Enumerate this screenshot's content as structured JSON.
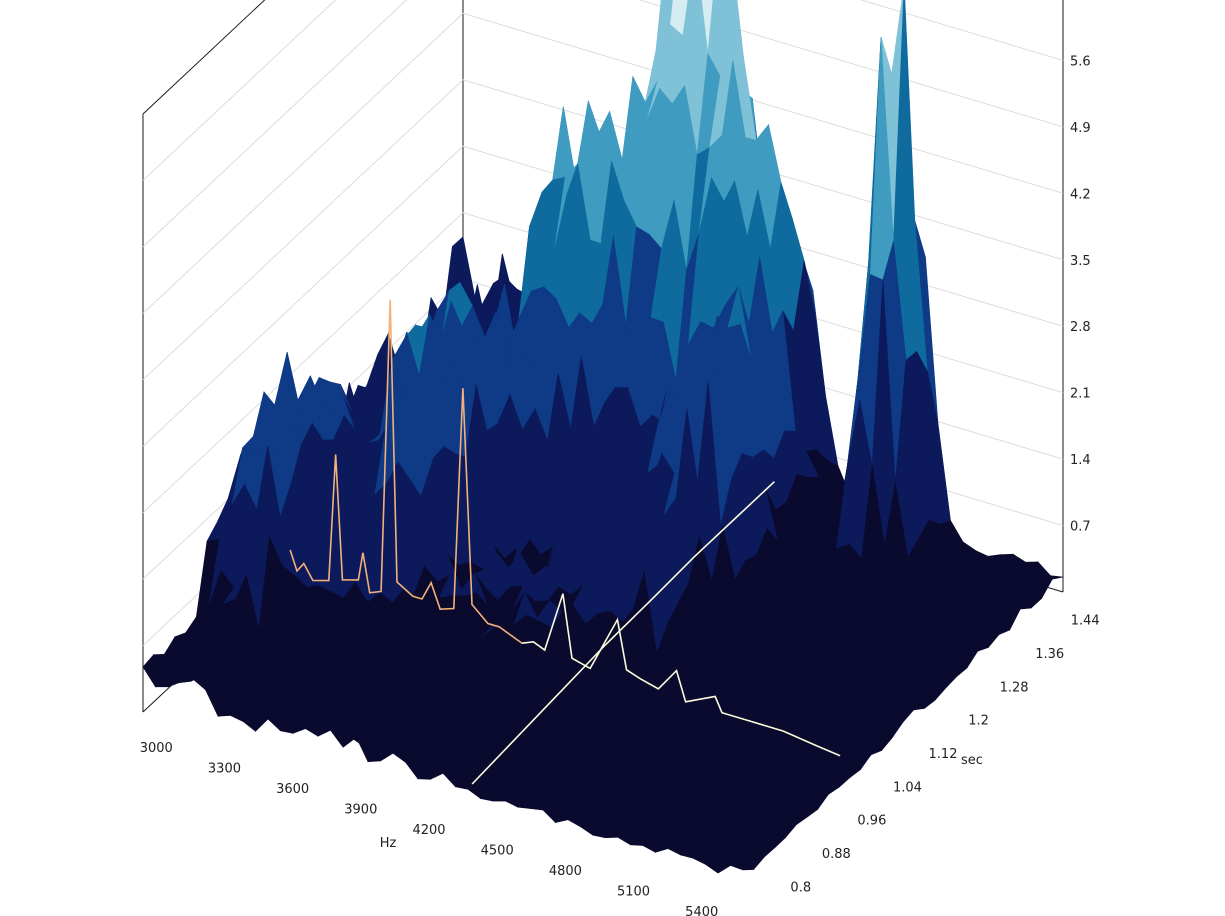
{
  "chart_data": {
    "type": "surface-3d",
    "title": "",
    "xlabel": "Hz",
    "ylabel": "sec",
    "zlabel": "",
    "x_ticks": [
      "3000",
      "3300",
      "3600",
      "3900",
      "4200",
      "4500",
      "4800",
      "5100",
      "5400"
    ],
    "y_ticks": [
      "0.8",
      "0.88",
      "0.96",
      "1.04",
      "1.12",
      "1.2",
      "1.28",
      "1.36",
      "1.44"
    ],
    "z_ticks": [
      "0.7",
      "1.4",
      "2.1",
      "2.8",
      "3.5",
      "4.2",
      "4.9",
      "5.6"
    ],
    "xlim": [
      2880,
      5520
    ],
    "ylim": [
      0.76,
      1.48
    ],
    "zlim": [
      0,
      6.3
    ],
    "grid": true,
    "colormap": [
      "#0a0a2e",
      "#0c1a5c",
      "#0e3a86",
      "#0f6a9e",
      "#3f9cc0",
      "#7fc2d8",
      "#d6ecf3"
    ],
    "peaks": [
      {
        "hz": 4875,
        "sec": 1.43,
        "amp": 6.2,
        "width_hz": 90,
        "width_sec": 0.06
      },
      {
        "hz": 4200,
        "sec": 1.4,
        "amp": 3.6,
        "width_hz": 260,
        "width_sec": 0.08
      },
      {
        "hz": 3950,
        "sec": 1.42,
        "amp": 3.2,
        "width_hz": 200,
        "width_sec": 0.07
      },
      {
        "hz": 3720,
        "sec": 1.3,
        "amp": 2.8,
        "width_hz": 180,
        "width_sec": 0.09
      },
      {
        "hz": 3450,
        "sec": 1.12,
        "amp": 2.1,
        "width_hz": 160,
        "width_sec": 0.12
      },
      {
        "hz": 3050,
        "sec": 1.0,
        "amp": 1.6,
        "width_hz": 160,
        "width_sec": 0.14
      },
      {
        "hz": 4450,
        "sec": 1.25,
        "amp": 1.5,
        "width_hz": 220,
        "width_sec": 0.14
      }
    ],
    "series": [
      {
        "name": "",
        "color": "#f4b07a",
        "sec": 1.04,
        "points": [
          [
            2980,
            0.55
          ],
          [
            3010,
            0.35
          ],
          [
            3040,
            0.45
          ],
          [
            3080,
            0.3
          ],
          [
            3150,
            0.35
          ],
          [
            3180,
            1.7
          ],
          [
            3210,
            0.4
          ],
          [
            3280,
            0.45
          ],
          [
            3300,
            0.75
          ],
          [
            3330,
            0.35
          ],
          [
            3380,
            0.4
          ],
          [
            3420,
            3.5
          ],
          [
            3450,
            0.55
          ],
          [
            3520,
            0.45
          ],
          [
            3560,
            0.45
          ],
          [
            3600,
            0.65
          ],
          [
            3640,
            0.4
          ],
          [
            3700,
            0.45
          ],
          [
            3740,
            2.8
          ],
          [
            3780,
            0.55
          ],
          [
            3850,
            0.4
          ],
          [
            3900,
            0.4
          ],
          [
            4000,
            0.3
          ]
        ]
      },
      {
        "name": "",
        "color": "#fdfbdd",
        "sec": 1.04,
        "points": [
          [
            4000,
            0.3
          ],
          [
            4050,
            0.35
          ],
          [
            4100,
            0.3
          ],
          [
            4180,
            0.95
          ],
          [
            4220,
            0.3
          ],
          [
            4300,
            0.25
          ],
          [
            4420,
            0.85
          ],
          [
            4460,
            0.35
          ],
          [
            4520,
            0.3
          ],
          [
            4600,
            0.25
          ],
          [
            4680,
            0.5
          ],
          [
            4720,
            0.2
          ],
          [
            4850,
            0.35
          ],
          [
            4880,
            0.2
          ],
          [
            5000,
            0.2
          ],
          [
            5150,
            0.2
          ],
          [
            5300,
            0.15
          ],
          [
            5400,
            0.12
          ]
        ]
      },
      {
        "name": "",
        "color": "#fdfbdd",
        "hz": 4250,
        "points": [
          [
            0.8,
            0.05
          ],
          [
            0.9,
            0.1
          ],
          [
            1.0,
            0.15
          ],
          [
            1.1,
            0.2
          ],
          [
            1.2,
            0.22
          ],
          [
            1.3,
            0.25
          ],
          [
            1.4,
            0.25
          ],
          [
            1.48,
            0.25
          ]
        ]
      }
    ]
  }
}
